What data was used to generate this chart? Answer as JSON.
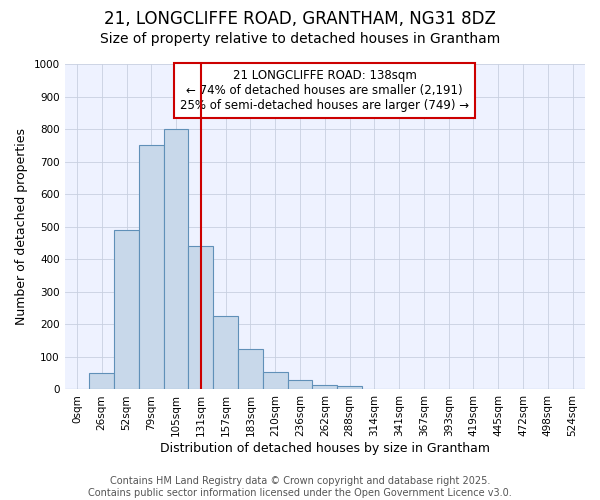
{
  "title_line1": "21, LONGCLIFFE ROAD, GRANTHAM, NG31 8DZ",
  "title_line2": "Size of property relative to detached houses in Grantham",
  "xlabel": "Distribution of detached houses by size in Grantham",
  "ylabel": "Number of detached properties",
  "categories": [
    "0sqm",
    "26sqm",
    "52sqm",
    "79sqm",
    "105sqm",
    "131sqm",
    "157sqm",
    "183sqm",
    "210sqm",
    "236sqm",
    "262sqm",
    "288sqm",
    "314sqm",
    "341sqm",
    "367sqm",
    "393sqm",
    "419sqm",
    "445sqm",
    "472sqm",
    "498sqm",
    "524sqm"
  ],
  "bar_heights": [
    0,
    50,
    490,
    750,
    800,
    440,
    225,
    125,
    55,
    30,
    15,
    10,
    0,
    0,
    0,
    0,
    0,
    0,
    0,
    0,
    0
  ],
  "bar_color": "#c8d8ea",
  "bar_edge_color": "#6090b8",
  "bar_edge_width": 0.8,
  "grid_color": "#c8d0e0",
  "background_color": "#ffffff",
  "plot_bg_color": "#eef2ff",
  "ylim_max": 1000,
  "yticks": [
    0,
    100,
    200,
    300,
    400,
    500,
    600,
    700,
    800,
    900,
    1000
  ],
  "vline_x": 5.0,
  "vline_color": "#cc0000",
  "vline_linewidth": 1.5,
  "annotation_text": "21 LONGCLIFFE ROAD: 138sqm\n← 74% of detached houses are smaller (2,191)\n25% of semi-detached houses are larger (749) →",
  "annotation_box_edgecolor": "#cc0000",
  "footer_text": "Contains HM Land Registry data © Crown copyright and database right 2025.\nContains public sector information licensed under the Open Government Licence v3.0.",
  "title1_fontsize": 12,
  "title2_fontsize": 10,
  "annotation_fontsize": 8.5,
  "footer_fontsize": 7,
  "ylabel_fontsize": 9,
  "xlabel_fontsize": 9,
  "tick_fontsize": 7.5
}
